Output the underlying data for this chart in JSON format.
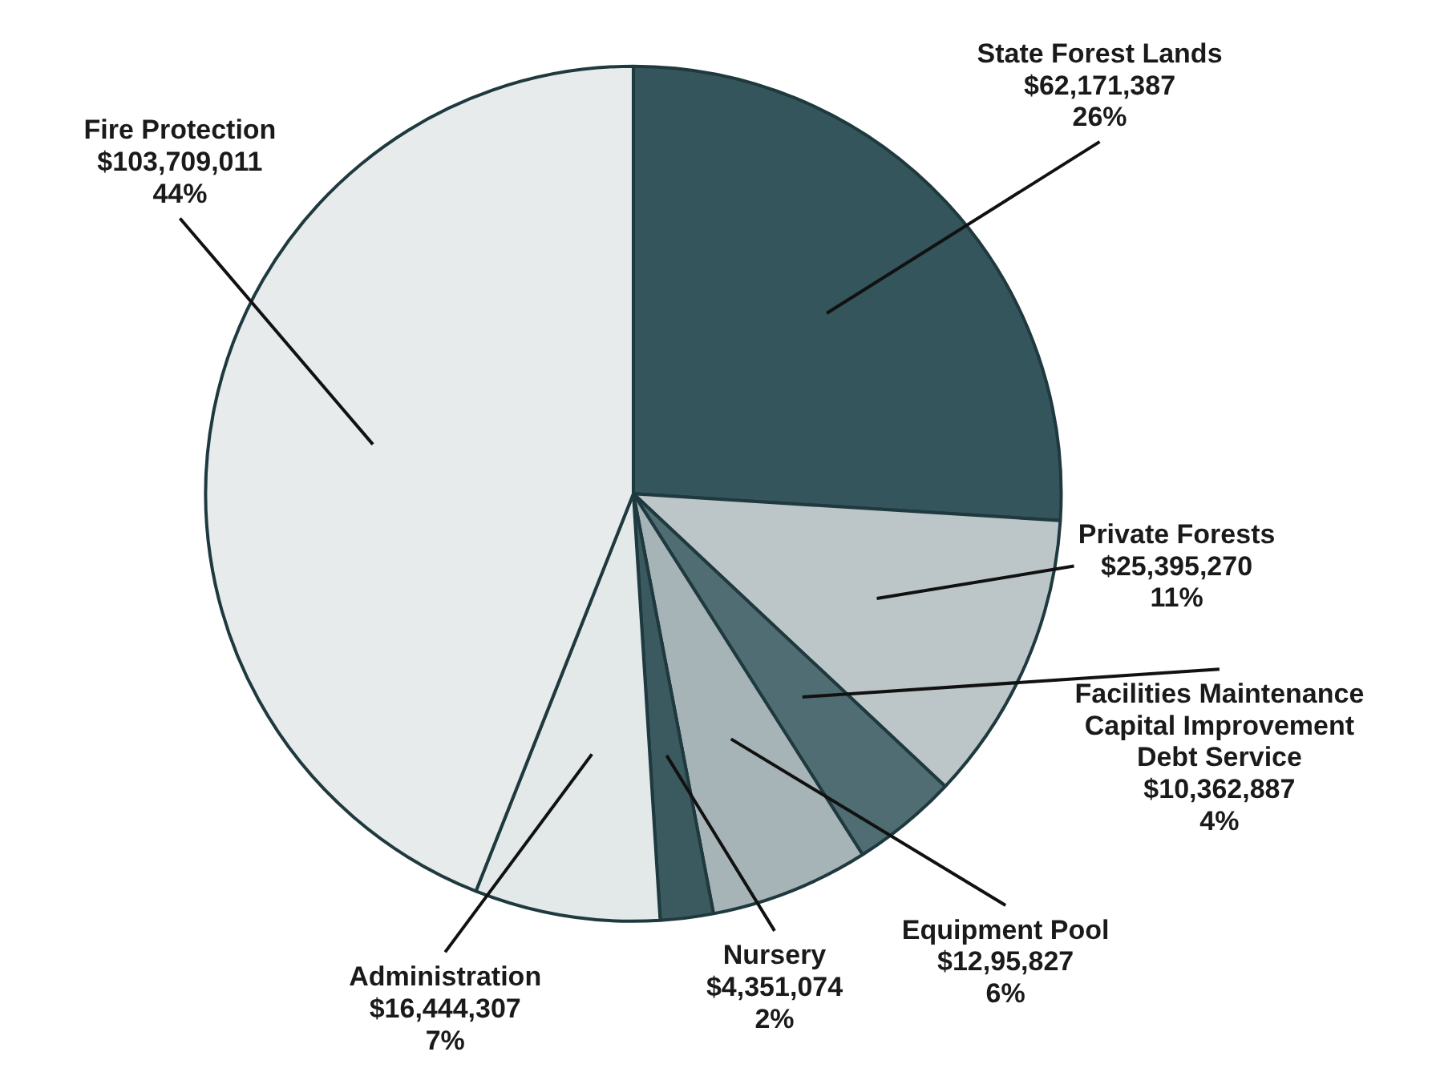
{
  "chart_data": {
    "type": "pie",
    "categories": [
      "State Forest Lands",
      "Private Forests",
      "Facilities Maintenance\nCapital Improvement\nDebt Service",
      "Equipment Pool",
      "Nursery",
      "Administration",
      "Fire Protection"
    ],
    "values": [
      26,
      11,
      4,
      6,
      2,
      7,
      44
    ],
    "value_labels": [
      "$62,171,387\n26%",
      "$25,395,270\n11%",
      "$10,362,887\n4%",
      "$12,95,827\n6%",
      "$4,351,074\n2%",
      "$16,444,307\n7%",
      "$103,709,011\n44%"
    ],
    "colors": [
      "#34555b",
      "#bcc6c9",
      "#4f6d72",
      "#a7b4b7",
      "#3b5a5f",
      "#e3e8e9",
      "#e7ebec"
    ]
  }
}
